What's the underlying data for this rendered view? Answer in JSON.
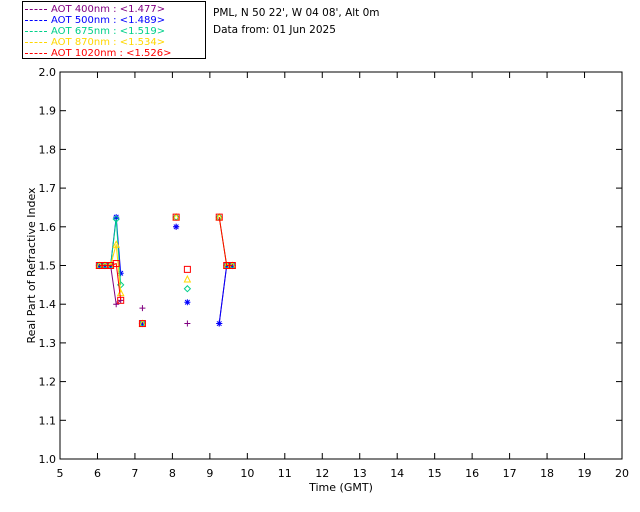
{
  "header": {
    "location": "PML, N 50 22', W 04 08', Alt 0m",
    "data_from": "Data from: 01 Jun 2025"
  },
  "legend": [
    {
      "label": "AOT  400nm : <1.477>",
      "color": "#800080"
    },
    {
      "label": "AOT  500nm : <1.489>",
      "color": "#0000ff"
    },
    {
      "label": "AOT  675nm : <1.519>",
      "color": "#00d08a"
    },
    {
      "label": "AOT  870nm : <1.534>",
      "color": "#ffd700"
    },
    {
      "label": "AOT 1020nm : <1.526>",
      "color": "#ff0000"
    }
  ],
  "chart_data": {
    "type": "scatter",
    "xlabel": "Time (GMT)",
    "ylabel": "Real Part of Refractive Index",
    "xlim": [
      5,
      20
    ],
    "ylim": [
      1.0,
      2.0
    ],
    "xticks": [
      5,
      6,
      7,
      8,
      9,
      10,
      11,
      12,
      13,
      14,
      15,
      16,
      17,
      18,
      19,
      20
    ],
    "yticks": [
      1.0,
      1.1,
      1.2,
      1.3,
      1.4,
      1.5,
      1.6,
      1.7,
      1.8,
      1.9,
      2.0
    ],
    "series": [
      {
        "name": "AOT  400nm : <1.477>",
        "color": "#800080",
        "marker": "plus",
        "points": [
          [
            6.05,
            1.5
          ],
          [
            6.2,
            1.5
          ],
          [
            6.35,
            1.5
          ],
          [
            6.5,
            1.4
          ],
          [
            6.62,
            1.41
          ],
          [
            7.2,
            1.39
          ],
          [
            8.1,
            1.6
          ],
          [
            8.4,
            1.35
          ],
          [
            9.25,
            1.35
          ],
          [
            9.45,
            1.5
          ],
          [
            9.6,
            1.5
          ]
        ],
        "lines": [
          [
            [
              6.05,
              1.5
            ],
            [
              6.2,
              1.5
            ],
            [
              6.35,
              1.5
            ],
            [
              6.5,
              1.4
            ],
            [
              6.62,
              1.41
            ]
          ],
          [
            [
              9.25,
              1.35
            ],
            [
              9.45,
              1.5
            ],
            [
              9.6,
              1.5
            ]
          ]
        ]
      },
      {
        "name": "AOT  500nm : <1.489>",
        "color": "#0000ff",
        "marker": "star",
        "points": [
          [
            6.05,
            1.5
          ],
          [
            6.2,
            1.5
          ],
          [
            6.35,
            1.5
          ],
          [
            6.5,
            1.625
          ],
          [
            6.62,
            1.48
          ],
          [
            7.2,
            1.35
          ],
          [
            8.1,
            1.6
          ],
          [
            8.4,
            1.405
          ],
          [
            9.25,
            1.35
          ],
          [
            9.45,
            1.5
          ],
          [
            9.6,
            1.5
          ]
        ],
        "lines": [
          [
            [
              6.05,
              1.5
            ],
            [
              6.2,
              1.5
            ],
            [
              6.35,
              1.5
            ],
            [
              6.5,
              1.625
            ],
            [
              6.62,
              1.48
            ]
          ],
          [
            [
              9.25,
              1.35
            ],
            [
              9.45,
              1.5
            ],
            [
              9.6,
              1.5
            ]
          ]
        ]
      },
      {
        "name": "AOT  675nm : <1.519>",
        "color": "#00d08a",
        "marker": "diamond",
        "points": [
          [
            6.05,
            1.5
          ],
          [
            6.2,
            1.5
          ],
          [
            6.35,
            1.5
          ],
          [
            6.5,
            1.62
          ],
          [
            6.62,
            1.45
          ],
          [
            7.2,
            1.35
          ],
          [
            8.1,
            1.625
          ],
          [
            8.4,
            1.44
          ],
          [
            9.25,
            1.625
          ],
          [
            9.45,
            1.5
          ],
          [
            9.6,
            1.5
          ]
        ],
        "lines": [
          [
            [
              6.05,
              1.5
            ],
            [
              6.2,
              1.5
            ],
            [
              6.35,
              1.5
            ],
            [
              6.5,
              1.62
            ],
            [
              6.62,
              1.45
            ]
          ],
          [
            [
              9.25,
              1.625
            ],
            [
              9.45,
              1.5
            ],
            [
              9.6,
              1.5
            ]
          ]
        ]
      },
      {
        "name": "AOT  870nm : <1.534>",
        "color": "#ffd700",
        "marker": "triangle",
        "points": [
          [
            6.05,
            1.5
          ],
          [
            6.2,
            1.5
          ],
          [
            6.35,
            1.5
          ],
          [
            6.5,
            1.555
          ],
          [
            6.62,
            1.43
          ],
          [
            7.2,
            1.35
          ],
          [
            8.1,
            1.625
          ],
          [
            8.4,
            1.465
          ],
          [
            9.25,
            1.625
          ],
          [
            9.45,
            1.5
          ],
          [
            9.6,
            1.5
          ]
        ],
        "lines": [
          [
            [
              6.05,
              1.5
            ],
            [
              6.2,
              1.5
            ],
            [
              6.35,
              1.5
            ],
            [
              6.5,
              1.555
            ],
            [
              6.62,
              1.43
            ]
          ],
          [
            [
              9.25,
              1.625
            ],
            [
              9.45,
              1.5
            ],
            [
              9.6,
              1.5
            ]
          ]
        ]
      },
      {
        "name": "AOT 1020nm : <1.526>",
        "color": "#ff0000",
        "marker": "square",
        "points": [
          [
            6.05,
            1.5
          ],
          [
            6.2,
            1.5
          ],
          [
            6.35,
            1.5
          ],
          [
            6.5,
            1.505
          ],
          [
            6.62,
            1.41
          ],
          [
            7.2,
            1.35
          ],
          [
            8.1,
            1.625
          ],
          [
            8.4,
            1.49
          ],
          [
            9.25,
            1.625
          ],
          [
            9.45,
            1.5
          ],
          [
            9.6,
            1.5
          ]
        ],
        "lines": [
          [
            [
              6.05,
              1.5
            ],
            [
              6.2,
              1.5
            ],
            [
              6.35,
              1.5
            ],
            [
              6.5,
              1.505
            ],
            [
              6.62,
              1.41
            ]
          ],
          [
            [
              9.25,
              1.625
            ],
            [
              9.45,
              1.5
            ],
            [
              9.6,
              1.5
            ]
          ]
        ]
      }
    ]
  }
}
